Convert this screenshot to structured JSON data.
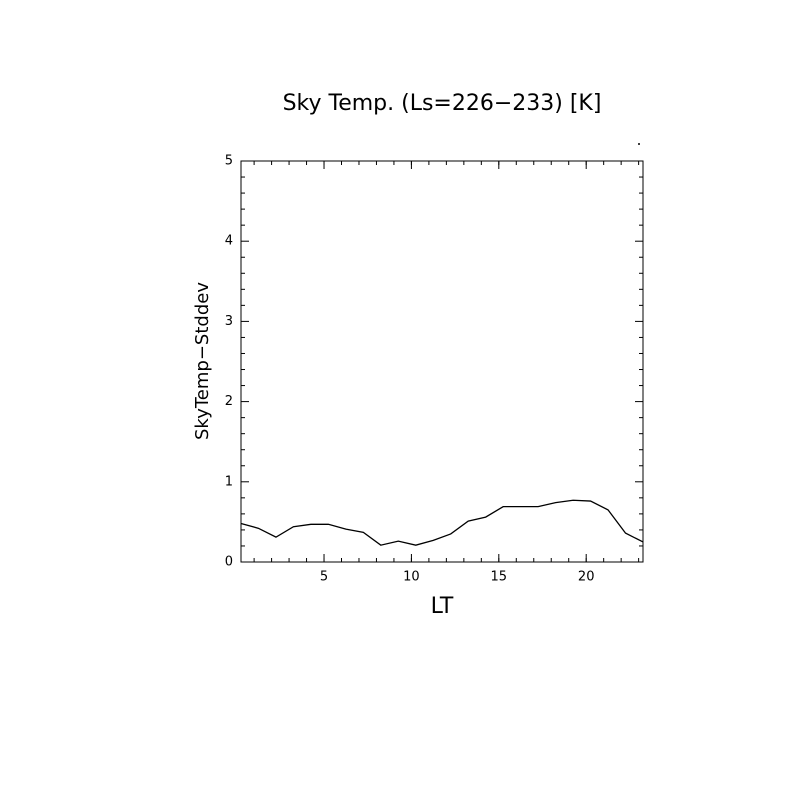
{
  "chart_data": {
    "type": "line",
    "title": "Sky Temp. (Ls=226−233) [K]",
    "xlabel": "LT",
    "ylabel": "SkyTemp−Stddev",
    "x": [
      0.25,
      1.25,
      2.25,
      3.25,
      4.25,
      5.25,
      6.25,
      7.25,
      8.25,
      9.25,
      10.25,
      11.25,
      12.25,
      13.25,
      14.25,
      15.25,
      16.25,
      17.25,
      18.25,
      19.25,
      20.25,
      21.25,
      22.25,
      23.25
    ],
    "series": [
      {
        "color": "#000000",
        "values": [
          0.48,
          0.42,
          0.31,
          0.44,
          0.47,
          0.47,
          0.41,
          0.37,
          0.21,
          0.26,
          0.21,
          0.27,
          0.35,
          0.51,
          0.56,
          0.69,
          0.69,
          0.69,
          0.74,
          0.77,
          0.76,
          0.65,
          0.36,
          0.25
        ]
      }
    ],
    "xlim": [
      0.25,
      23.25
    ],
    "xticks": [
      5,
      10,
      15,
      20
    ],
    "ylim": [
      0,
      5
    ],
    "yticks": [
      0,
      1,
      2,
      3,
      4,
      5
    ]
  }
}
